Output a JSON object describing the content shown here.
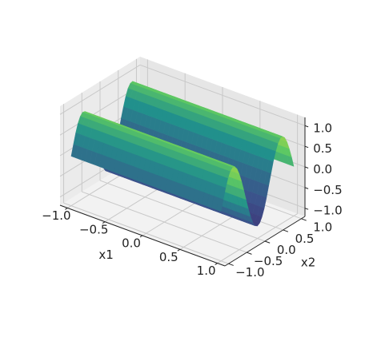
{
  "chart_data": {
    "type": "surface3d",
    "title": "",
    "xlabel": "x1",
    "ylabel": "x2",
    "zlabel": "",
    "xlim": [
      -1.1,
      1.1
    ],
    "ylim": [
      -1.1,
      1.1
    ],
    "zlim": [
      -1.2,
      1.2
    ],
    "x_ticks": [
      -1.0,
      -0.5,
      0.0,
      0.5,
      1.0
    ],
    "y_ticks": [
      -1.0,
      -0.5,
      0.0,
      0.5,
      1.0
    ],
    "z_ticks": [
      -1.0,
      -0.5,
      0.0,
      0.5,
      1.0
    ],
    "x_tick_labels": [
      "−1.0",
      "−0.5",
      "0.0",
      "0.5",
      "1.0"
    ],
    "y_tick_labels": [
      "−1.0",
      "−0.5",
      "0.0",
      "0.5",
      "1.0"
    ],
    "z_tick_labels": [
      "−1.0",
      "−0.5",
      "0.0",
      "0.5",
      "1.0"
    ],
    "surface_x1_range": [
      -1.0,
      1.0
    ],
    "surface_x2_range": [
      -1.0,
      1.0
    ],
    "surface_z_range": [
      -0.9,
      0.9
    ],
    "colormap": [
      "#440154",
      "#3b528b",
      "#21918c",
      "#5ec962",
      "#fde725"
    ],
    "grid": true,
    "pane_color": "#f2f2f2",
    "edge_color": "#ffffff"
  }
}
